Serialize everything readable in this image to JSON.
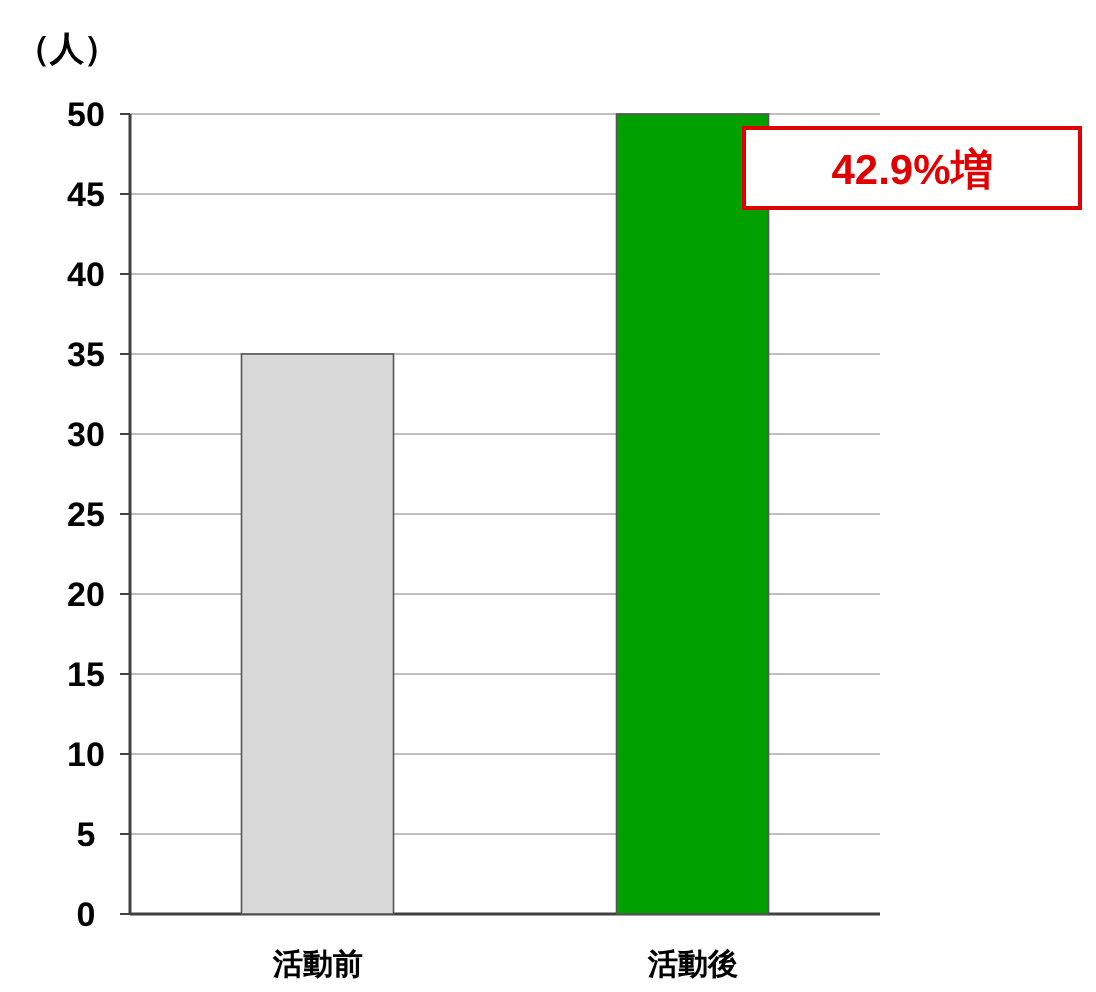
{
  "chart_data": {
    "type": "bar",
    "ylabel": "（人）",
    "categories": [
      "活動前",
      "活動後"
    ],
    "values": [
      35,
      50
    ],
    "colors": [
      "#d9d9d9",
      "#00a000"
    ],
    "ylim": [
      0,
      50
    ],
    "yticks": [
      0,
      5,
      10,
      15,
      20,
      25,
      30,
      35,
      40,
      45,
      50
    ],
    "grid": "y",
    "annotations": [
      "42.9%増"
    ]
  }
}
